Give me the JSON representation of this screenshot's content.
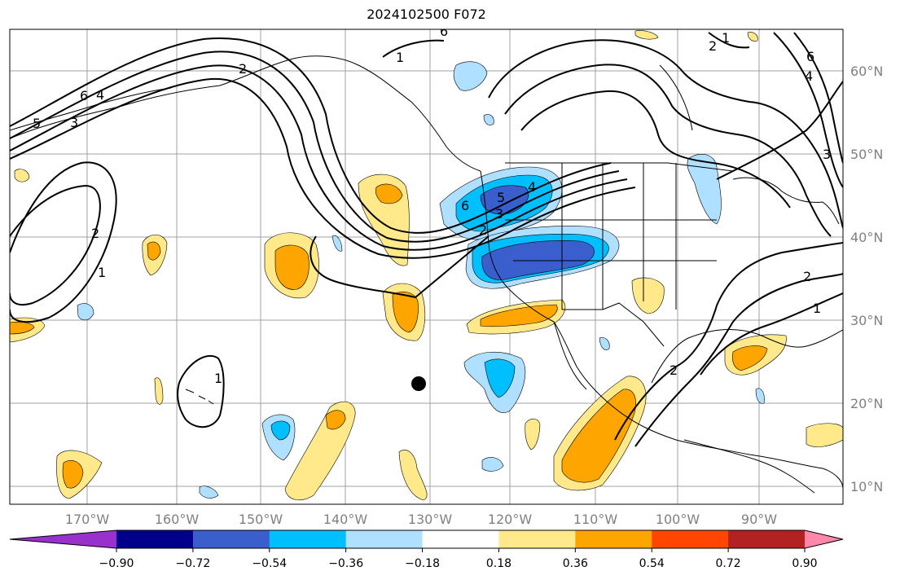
{
  "title": "2024102500 F072",
  "lon_labels": [
    "170°W",
    "160°W",
    "150°W",
    "140°W",
    "130°W",
    "120°W",
    "110°W",
    "100°W",
    "90°W"
  ],
  "lat_labels": [
    "60°N",
    "50°N",
    "40°N",
    "30°N",
    "20°N",
    "10°N"
  ],
  "colorbar": {
    "colors": [
      "#9932cc",
      "#00008b",
      "#3a5fcd",
      "#00bfff",
      "#b0e0ff",
      "#ffffff",
      "#ffe98a",
      "#ffa500",
      "#ff4500",
      "#b22222",
      "#ff88aa"
    ],
    "tick_labels": [
      "−0.90",
      "−0.72",
      "−0.54",
      "−0.36",
      "−0.18",
      "0.18",
      "0.36",
      "0.54",
      "0.72",
      "0.90"
    ]
  },
  "contour_labels": [
    "6",
    "4",
    "5",
    "3",
    "2",
    "1",
    "2",
    "1",
    "1",
    "6",
    "5",
    "4",
    "3",
    "2",
    "6",
    "2",
    "1",
    "4",
    "6",
    "3",
    "2",
    "2",
    "1"
  ],
  "colors": {
    "gridline": "#a0a0a0",
    "coastline": "#000000",
    "contour": "#000000",
    "marker": "#000000"
  }
}
